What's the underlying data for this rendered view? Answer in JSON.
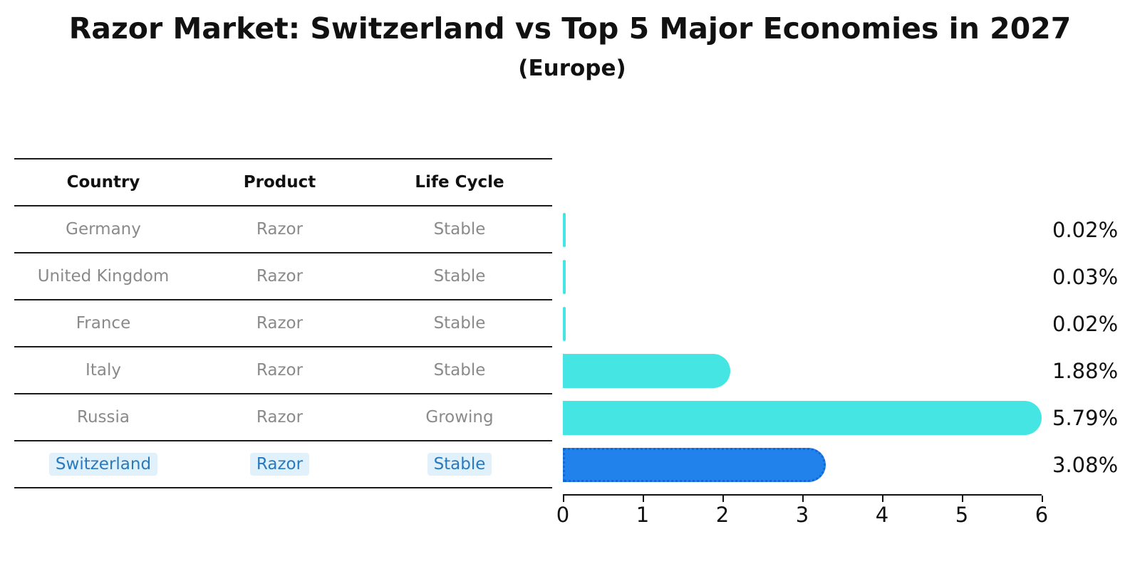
{
  "title": "Razor Market: Switzerland vs Top 5 Major Economies in 2027",
  "subtitle": "(Europe)",
  "table": {
    "headers": [
      "Country",
      "Product",
      "Life Cycle"
    ],
    "rows": [
      {
        "country": "Germany",
        "product": "Razor",
        "life_cycle": "Stable",
        "highlight": false
      },
      {
        "country": "United Kingdom",
        "product": "Razor",
        "life_cycle": "Stable",
        "highlight": false
      },
      {
        "country": "France",
        "product": "Razor",
        "life_cycle": "Stable",
        "highlight": false
      },
      {
        "country": "Italy",
        "product": "Razor",
        "life_cycle": "Stable",
        "highlight": false
      },
      {
        "country": "Russia",
        "product": "Razor",
        "life_cycle": "Growing",
        "highlight": false
      },
      {
        "country": "Switzerland",
        "product": "Razor",
        "life_cycle": "Stable",
        "highlight": true
      }
    ]
  },
  "chart_data": {
    "type": "bar",
    "orientation": "horizontal",
    "title": "Razor Market: Switzerland vs Top 5 Major Economies in 2027",
    "subtitle": "(Europe)",
    "categories": [
      "Germany",
      "United Kingdom",
      "France",
      "Italy",
      "Russia",
      "Switzerland"
    ],
    "values": [
      0.02,
      0.03,
      0.02,
      1.88,
      5.79,
      3.08
    ],
    "value_labels": [
      "0.02%",
      "0.03%",
      "0.02%",
      "1.88%",
      "5.79%",
      "3.08%"
    ],
    "xlabel": "",
    "ylabel": "",
    "xlim": [
      0,
      6
    ],
    "x_ticks": [
      "0",
      "1",
      "2",
      "3",
      "4",
      "5",
      "6"
    ],
    "grid": false,
    "legend": false,
    "highlight_index": 5,
    "colors": {
      "default_bar": "#44e5e3",
      "highlight_bar": "#2182eb",
      "highlight_bar_border": "#1266d6",
      "highlight_text": "#2879bd",
      "highlight_text_bg": "#e1f1fc",
      "row_text": "#8a8a8a",
      "header_text": "#111111",
      "value_label_text": "#111111",
      "axis": "#111111"
    }
  }
}
